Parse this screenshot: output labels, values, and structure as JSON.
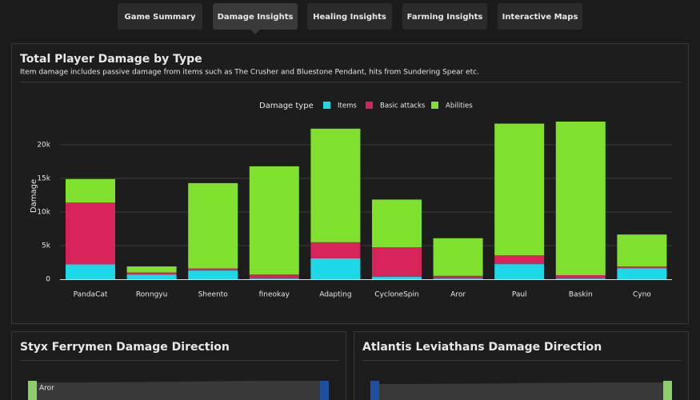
{
  "nav": {
    "tabs": [
      "Game Summary",
      "Damage Insights",
      "Healing Insights",
      "Farming Insights",
      "Interactive Maps"
    ],
    "active_tab": 1
  },
  "chart_data": {
    "type": "bar",
    "stacked": true,
    "title": "Total Player Damage by Type",
    "subtitle": "Item damage includes passive damage from items such as The Crusher and Bluestone Pendant, hits from Sundering Spear etc.",
    "legend_title": "Damage type",
    "legend_position": "top",
    "ylabel": "Damage",
    "categories": [
      "PandaCat",
      "Ronngyu",
      "Sheento",
      "fineokay",
      "Adapting",
      "CycloneSpin",
      "Aror",
      "Paul",
      "Baskin",
      "Cyno"
    ],
    "series": [
      {
        "name": "Items",
        "color": "#1ed8e8",
        "values": [
          2200,
          700,
          1300,
          100,
          3100,
          350,
          100,
          2250,
          100,
          1650
        ]
      },
      {
        "name": "Basic attacks",
        "color": "#d6245a",
        "values": [
          9200,
          300,
          300,
          600,
          2400,
          4400,
          400,
          1300,
          500,
          250
        ]
      },
      {
        "name": "Abilities",
        "color": "#7fe12e",
        "values": [
          3500,
          900,
          12700,
          16100,
          16900,
          7100,
          5600,
          19600,
          22850,
          4750
        ]
      }
    ],
    "ylim": [
      0,
      24000
    ],
    "yticks": [
      0,
      {
        "value": 5000,
        "label": "5k"
      },
      {
        "value": 10000,
        "label": "10k"
      },
      {
        "value": 15000,
        "label": "15k"
      },
      {
        "value": 20000,
        "label": "20k"
      }
    ],
    "grid": true
  },
  "panels": [
    {
      "title": "Styx Ferrymen Damage Direction",
      "node_label": "Aror"
    },
    {
      "title": "Atlantis Leviathans Damage Direction"
    }
  ]
}
